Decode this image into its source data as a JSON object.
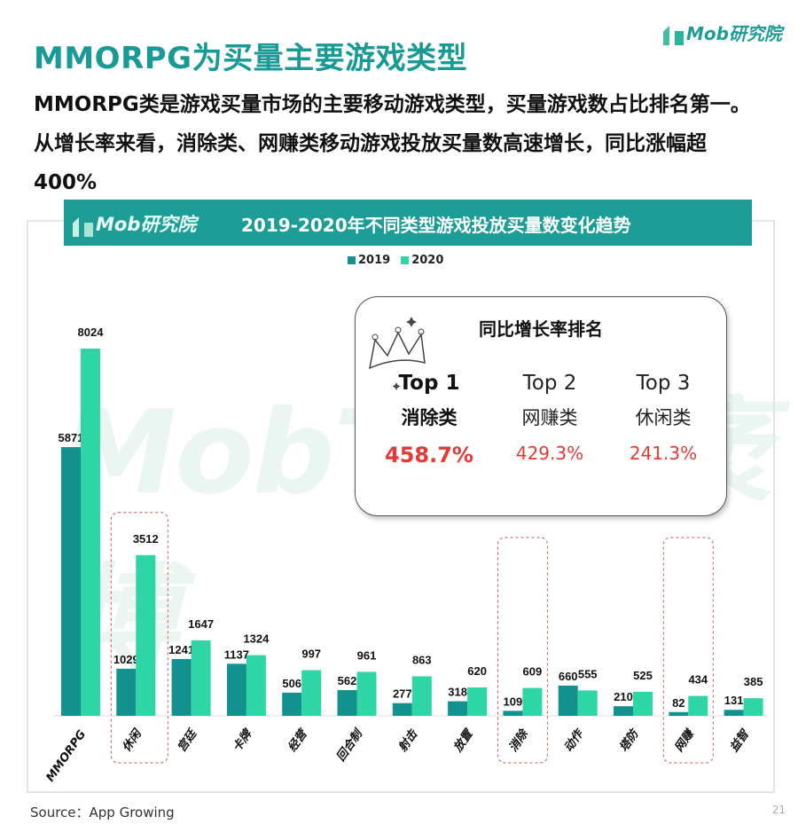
{
  "brand": "Mob研究院",
  "title": "MMORPG为买量主要游戏类型",
  "subtitle": "MMORPG类是游戏买量市场的主要移动游戏类型，买量游戏数占比排名第一。从增长率来看，消除类、网赚类移动游戏投放买量数高速增长，同比涨幅超400%",
  "watermark": "MobTech 袤博",
  "inset": {
    "title": "同比增长率排名",
    "ranks": [
      {
        "rank": "Top 1",
        "name": "消除类",
        "growth": "458.7%"
      },
      {
        "rank": "Top 2",
        "name": "网赚类",
        "growth": "429.3%"
      },
      {
        "rank": "Top 3",
        "name": "休闲类",
        "growth": "241.3%"
      }
    ]
  },
  "source": "Source：App Growing",
  "page_number": "21",
  "colors": {
    "s2019": "#13918f",
    "s2020": "#2ed6a6",
    "accent": "#1e9c96",
    "highlight": "#e53935"
  },
  "chart_data": {
    "type": "bar",
    "title": "2019-2020年不同类型游戏投放买量数变化趋势",
    "categories": [
      "MMORPG",
      "休闲",
      "宫廷",
      "卡牌",
      "经营",
      "回合制",
      "射击",
      "放置",
      "消除",
      "动作",
      "塔防",
      "网赚",
      "益智"
    ],
    "series": [
      {
        "name": "2019",
        "values": [
          5871,
          1029,
          1241,
          1137,
          506,
          562,
          277,
          318,
          109,
          660,
          210,
          82,
          131
        ]
      },
      {
        "name": "2020",
        "values": [
          8024,
          3512,
          1647,
          1324,
          997,
          961,
          863,
          620,
          609,
          555,
          525,
          434,
          385
        ]
      }
    ],
    "highlighted": [
      "休闲",
      "消除",
      "网赚"
    ],
    "ylim": [
      0,
      8024
    ],
    "legend": "top-center",
    "grid": false
  }
}
